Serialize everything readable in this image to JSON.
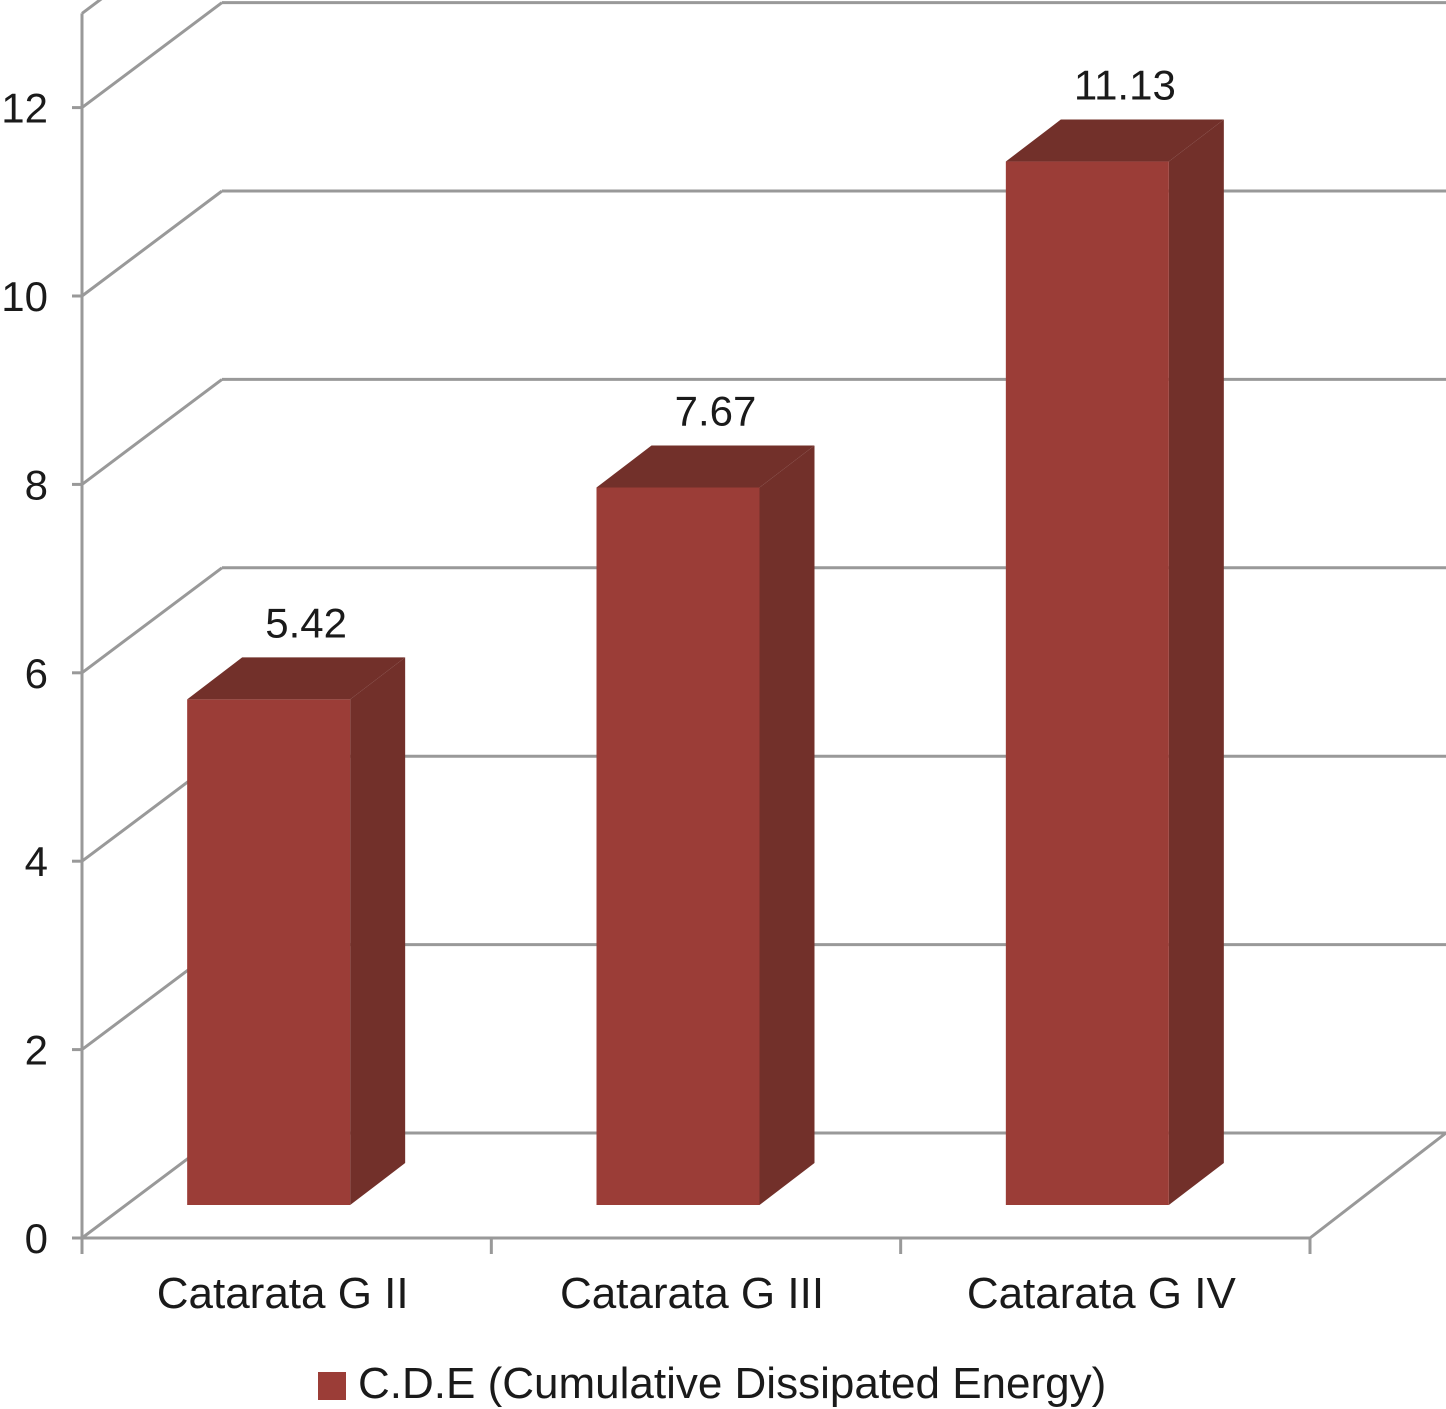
{
  "chart_data": {
    "type": "bar",
    "style": "3d-column",
    "categories": [
      "Catarata G II",
      "Catarata G III",
      "Catarata G IV"
    ],
    "series": [
      {
        "name": "C.D.E (Cumulative Dissipated Energy)",
        "values": [
          5.42,
          7.67,
          11.13
        ]
      }
    ],
    "data_labels": [
      "5.42",
      "7.67",
      "11.13"
    ],
    "y_ticks": [
      "0",
      "2",
      "4",
      "6",
      "8",
      "10",
      "12"
    ],
    "ylim": [
      0,
      12
    ],
    "grid": true,
    "legend_position": "bottom",
    "colors": {
      "bar_front": "#9b3d37",
      "bar_side": "#72302a",
      "bar_top": "#72302a",
      "gridline": "#999999",
      "axis": "#999999",
      "legend_swatch": "#9b3d37"
    }
  }
}
